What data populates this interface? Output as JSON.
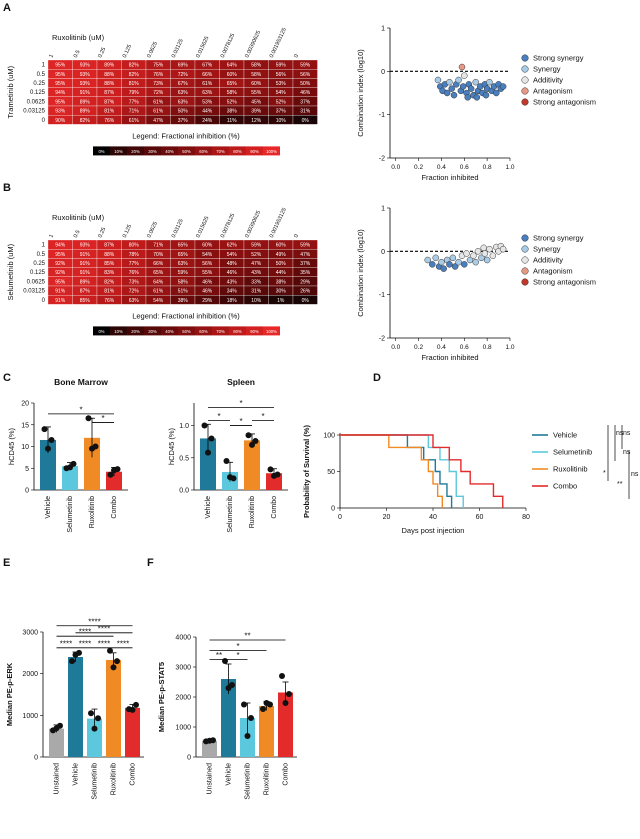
{
  "panels": {
    "A": {
      "label": "A",
      "col_drug": "Ruxolitinib (uM)",
      "row_drug": "Trametinib (uM)",
      "col_ticks": [
        "1",
        "0.5",
        "0.25",
        "0.125",
        "0.0625",
        "0.03125",
        "0.015625",
        "0.0078125",
        "0.00390625",
        "0.001953125",
        "0"
      ],
      "row_ticks": [
        "1",
        "0.5",
        "0.25",
        "0.125",
        "0.0625",
        "0.03125",
        "0"
      ],
      "values": [
        [
          "95%",
          "93%",
          "89%",
          "82%",
          "75%",
          "69%",
          "67%",
          "64%",
          "58%",
          "59%",
          "59%"
        ],
        [
          "95%",
          "93%",
          "88%",
          "82%",
          "76%",
          "72%",
          "66%",
          "60%",
          "58%",
          "56%",
          "56%"
        ],
        [
          "95%",
          "93%",
          "88%",
          "81%",
          "73%",
          "67%",
          "61%",
          "65%",
          "60%",
          "53%",
          "50%"
        ],
        [
          "94%",
          "91%",
          "87%",
          "79%",
          "72%",
          "63%",
          "63%",
          "58%",
          "55%",
          "54%",
          "46%"
        ],
        [
          "95%",
          "89%",
          "87%",
          "77%",
          "61%",
          "63%",
          "53%",
          "52%",
          "45%",
          "52%",
          "37%"
        ],
        [
          "93%",
          "89%",
          "81%",
          "71%",
          "61%",
          "50%",
          "44%",
          "38%",
          "39%",
          "37%",
          "31%"
        ],
        [
          "90%",
          "82%",
          "76%",
          "61%",
          "47%",
          "37%",
          "24%",
          "11%",
          "12%",
          "10%",
          "0%"
        ]
      ],
      "legend_title": "Legend: Fractional inhibition (%)",
      "legend_steps": [
        "0%",
        "10%",
        "20%",
        "30%",
        "40%",
        "50%",
        "60%",
        "70%",
        "80%",
        "90%",
        "100%"
      ],
      "scatter": {
        "ylabel": "Combination index (log10)",
        "xlabel": "Fraction inhibited",
        "x_ticks": [
          "0.0",
          "0.2",
          "0.4",
          "0.6",
          "0.8",
          "1.0"
        ],
        "y_ticks": [
          "1",
          "0",
          "-1",
          "-2"
        ],
        "legend": [
          "Strong synergy",
          "Synergy",
          "Additivity",
          "Antagonism",
          "Strong antagonism"
        ]
      }
    },
    "B": {
      "label": "B",
      "col_drug": "Ruxolitinib (uM)",
      "row_drug": "Selumetinib (uM)",
      "col_ticks": [
        "1",
        "0.5",
        "0.25",
        "0.125",
        "0.0625",
        "0.03125",
        "0.015625",
        "0.0078125",
        "0.00390625",
        "0.001953125",
        "0"
      ],
      "row_ticks": [
        "1",
        "0.5",
        "0.25",
        "0.125",
        "0.0625",
        "0.03125",
        "0"
      ],
      "values": [
        [
          "94%",
          "93%",
          "87%",
          "80%",
          "71%",
          "65%",
          "60%",
          "62%",
          "59%",
          "60%",
          "59%"
        ],
        [
          "95%",
          "91%",
          "88%",
          "78%",
          "70%",
          "65%",
          "54%",
          "54%",
          "52%",
          "49%",
          "47%"
        ],
        [
          "92%",
          "91%",
          "85%",
          "77%",
          "66%",
          "63%",
          "56%",
          "48%",
          "47%",
          "50%",
          "37%"
        ],
        [
          "92%",
          "91%",
          "83%",
          "76%",
          "65%",
          "59%",
          "55%",
          "46%",
          "43%",
          "44%",
          "35%"
        ],
        [
          "95%",
          "89%",
          "82%",
          "73%",
          "64%",
          "58%",
          "46%",
          "43%",
          "33%",
          "38%",
          "29%"
        ],
        [
          "91%",
          "87%",
          "81%",
          "72%",
          "61%",
          "51%",
          "46%",
          "34%",
          "31%",
          "30%",
          "26%"
        ],
        [
          "91%",
          "85%",
          "76%",
          "63%",
          "54%",
          "38%",
          "29%",
          "18%",
          "10%",
          "1%",
          "0%"
        ]
      ],
      "legend_title": "Legend: Fractional inhibition (%)",
      "legend_steps": [
        "0%",
        "10%",
        "20%",
        "30%",
        "40%",
        "50%",
        "60%",
        "70%",
        "80%",
        "90%",
        "100%"
      ],
      "scatter": {
        "ylabel": "Combination index (log10)",
        "xlabel": "Fraction inhibited",
        "x_ticks": [
          "0.0",
          "0.2",
          "0.4",
          "0.6",
          "0.8",
          "1.0"
        ],
        "y_ticks": [
          "1",
          "0",
          "-1",
          "-2"
        ],
        "legend": [
          "Strong synergy",
          "Synergy",
          "Additivity",
          "Antagonism",
          "Strong antagonism"
        ]
      }
    },
    "C": {
      "label": "C"
    },
    "D": {
      "label": "D"
    },
    "E": {
      "label": "E"
    },
    "F": {
      "label": "F"
    }
  },
  "colors": {
    "vehicle": "#1f7a99",
    "selumetinib": "#5cc8de",
    "ruxolitinib": "#f08a24",
    "combo": "#e32b2b",
    "unstained": "#a9a9a9",
    "strong_synergy": "#4a7fbf",
    "synergy": "#a9cbe6",
    "additivity": "#e6e6e6",
    "antagonism": "#e69a86",
    "strong_antagonism": "#c0392b"
  },
  "chart_data": [
    {
      "id": "A-scatter",
      "type": "scatter",
      "xlabel": "Fraction inhibited",
      "ylabel": "Combination index (log10)",
      "xlim": [
        0,
        1.0
      ],
      "ylim": [
        -2,
        1
      ],
      "points": [
        [
          0.37,
          -0.2
        ],
        [
          0.39,
          -0.35
        ],
        [
          0.41,
          -0.45
        ],
        [
          0.43,
          -0.3
        ],
        [
          0.45,
          -0.5
        ],
        [
          0.47,
          -0.25
        ],
        [
          0.49,
          -0.4
        ],
        [
          0.51,
          -0.55
        ],
        [
          0.53,
          -0.3
        ],
        [
          0.55,
          -0.2
        ],
        [
          0.57,
          -0.45
        ],
        [
          0.59,
          -0.35
        ],
        [
          0.6,
          -0.1
        ],
        [
          0.62,
          -0.5
        ],
        [
          0.64,
          -0.3
        ],
        [
          0.66,
          -0.4
        ],
        [
          0.68,
          -0.55
        ],
        [
          0.7,
          -0.25
        ],
        [
          0.72,
          -0.45
        ],
        [
          0.74,
          -0.35
        ],
        [
          0.76,
          -0.5
        ],
        [
          0.78,
          -0.3
        ],
        [
          0.8,
          -0.4
        ],
        [
          0.82,
          -0.25
        ],
        [
          0.84,
          -0.45
        ],
        [
          0.86,
          -0.35
        ],
        [
          0.88,
          -0.5
        ],
        [
          0.9,
          -0.3
        ],
        [
          0.92,
          -0.4
        ],
        [
          0.94,
          -0.35
        ],
        [
          0.58,
          0.1
        ],
        [
          0.63,
          -0.6
        ],
        [
          0.71,
          -0.6
        ],
        [
          0.79,
          -0.55
        ]
      ]
    },
    {
      "id": "B-scatter",
      "type": "scatter",
      "xlabel": "Fraction inhibited",
      "ylabel": "Combination index (log10)",
      "xlim": [
        0,
        1.0
      ],
      "ylim": [
        -2,
        1
      ],
      "points": [
        [
          0.28,
          -0.2
        ],
        [
          0.32,
          -0.3
        ],
        [
          0.35,
          -0.15
        ],
        [
          0.38,
          -0.35
        ],
        [
          0.4,
          -0.25
        ],
        [
          0.42,
          -0.4
        ],
        [
          0.45,
          -0.2
        ],
        [
          0.47,
          -0.3
        ],
        [
          0.5,
          -0.15
        ],
        [
          0.52,
          -0.35
        ],
        [
          0.55,
          -0.25
        ],
        [
          0.58,
          -0.1
        ],
        [
          0.6,
          -0.3
        ],
        [
          0.62,
          -0.05
        ],
        [
          0.65,
          -0.2
        ],
        [
          0.68,
          -0.1
        ],
        [
          0.7,
          -0.25
        ],
        [
          0.72,
          0.0
        ],
        [
          0.75,
          -0.15
        ],
        [
          0.78,
          -0.05
        ],
        [
          0.8,
          -0.2
        ],
        [
          0.82,
          0.05
        ],
        [
          0.85,
          -0.1
        ],
        [
          0.88,
          0.1
        ],
        [
          0.9,
          0.0
        ],
        [
          0.92,
          0.12
        ],
        [
          0.94,
          0.05
        ],
        [
          0.77,
          0.08
        ]
      ]
    },
    {
      "id": "C-bone-marrow",
      "type": "bar",
      "title": "Bone Marrow",
      "ylabel": "hCD45 (%)",
      "ylim": [
        0,
        20
      ],
      "y_ticks": [
        "0",
        "5",
        "10",
        "15",
        "20"
      ],
      "categories": [
        "Vehicle",
        "Selumetinib",
        "Ruxolitinib",
        "Combo"
      ],
      "values": [
        11.5,
        5.5,
        12,
        4.2
      ],
      "errors": [
        3,
        0.8,
        4.5,
        1
      ],
      "points": [
        [
          14,
          9.5,
          11.5
        ],
        [
          5,
          5.2,
          6
        ],
        [
          16.5,
          9.5,
          10
        ],
        [
          3.5,
          4.5,
          4.8
        ]
      ],
      "sig": [
        {
          "a": 0,
          "b": 3,
          "label": "*",
          "y": 17.5
        },
        {
          "a": 2,
          "b": 3,
          "label": "*",
          "y": 15.5
        }
      ]
    },
    {
      "id": "C-spleen",
      "type": "bar",
      "title": "Spleen",
      "ylabel": "hCD45 (%)",
      "ylim": [
        0,
        1.35
      ],
      "y_ticks": [
        "0.0",
        "0.5",
        "1.0"
      ],
      "categories": [
        "Vehicle",
        "Selumetinib",
        "Ruxolitinib",
        "Combo"
      ],
      "values": [
        0.8,
        0.28,
        0.77,
        0.26
      ],
      "errors": [
        0.22,
        0.15,
        0.1,
        0.07
      ],
      "points": [
        [
          1.0,
          0.58,
          0.8
        ],
        [
          0.45,
          0.2,
          0.18
        ],
        [
          0.85,
          0.7,
          0.76
        ],
        [
          0.32,
          0.22,
          0.24
        ]
      ],
      "sig": [
        {
          "a": 0,
          "b": 3,
          "label": "*",
          "y": 1.28
        },
        {
          "a": 0,
          "b": 1,
          "label": "*",
          "y": 1.08
        },
        {
          "a": 1,
          "b": 2,
          "label": "*",
          "y": 1.0
        },
        {
          "a": 2,
          "b": 3,
          "label": "*",
          "y": 1.08
        }
      ]
    },
    {
      "id": "D-survival",
      "type": "line",
      "ylabel": "Probability of Survival (%)",
      "xlabel": "Days post injection",
      "xlim": [
        0,
        80
      ],
      "ylim": [
        0,
        100
      ],
      "x_ticks": [
        "0",
        "20",
        "40",
        "60",
        "80"
      ],
      "y_ticks": [
        "0",
        "50",
        "100"
      ],
      "series": [
        {
          "name": "Vehicle",
          "points": [
            [
              0,
              100
            ],
            [
              29,
              100
            ],
            [
              29,
              83
            ],
            [
              36,
              83
            ],
            [
              36,
              66
            ],
            [
              41,
              66
            ],
            [
              41,
              50
            ],
            [
              43,
              50
            ],
            [
              43,
              33
            ],
            [
              46,
              33
            ],
            [
              46,
              16
            ],
            [
              48,
              16
            ],
            [
              48,
              0
            ]
          ]
        },
        {
          "name": "Selumetinib",
          "points": [
            [
              0,
              100
            ],
            [
              38,
              100
            ],
            [
              38,
              83
            ],
            [
              43,
              83
            ],
            [
              43,
              66
            ],
            [
              47,
              66
            ],
            [
              47,
              50
            ],
            [
              50,
              50
            ],
            [
              50,
              16
            ],
            [
              53,
              16
            ],
            [
              53,
              0
            ]
          ]
        },
        {
          "name": "Ruxolitinib",
          "points": [
            [
              0,
              100
            ],
            [
              21,
              100
            ],
            [
              21,
              83
            ],
            [
              35,
              83
            ],
            [
              35,
              66
            ],
            [
              38,
              66
            ],
            [
              38,
              50
            ],
            [
              40,
              50
            ],
            [
              40,
              33
            ],
            [
              42,
              33
            ],
            [
              42,
              16
            ],
            [
              44,
              16
            ],
            [
              44,
              0
            ]
          ]
        },
        {
          "name": "Combo",
          "points": [
            [
              0,
              100
            ],
            [
              40,
              100
            ],
            [
              40,
              83
            ],
            [
              47,
              83
            ],
            [
              47,
              66
            ],
            [
              52,
              66
            ],
            [
              52,
              50
            ],
            [
              56,
              50
            ],
            [
              56,
              33
            ],
            [
              66,
              33
            ],
            [
              66,
              16
            ],
            [
              70,
              16
            ],
            [
              70,
              0
            ]
          ]
        }
      ],
      "sig_labels": [
        "ns",
        "ns",
        "*",
        "ns",
        "**",
        "ns"
      ]
    },
    {
      "id": "E-p-ERK",
      "type": "bar",
      "ylabel": "Median PE-p-ERK",
      "ylim": [
        0,
        3000
      ],
      "y_ticks": [
        "0",
        "1000",
        "2000",
        "3000"
      ],
      "categories": [
        "Unstained",
        "Vehicle",
        "Selumetinib",
        "Ruxolitinib",
        "Combo"
      ],
      "values": [
        680,
        2400,
        920,
        2330,
        1180
      ],
      "errors": [
        90,
        120,
        230,
        170,
        80
      ],
      "points": [
        [
          640,
          690,
          750
        ],
        [
          2300,
          2450,
          2500
        ],
        [
          1050,
          680,
          930
        ],
        [
          2550,
          2150,
          2300
        ],
        [
          1150,
          1130,
          1250
        ]
      ],
      "sig": [
        {
          "a": 0,
          "b": 1,
          "label": "****",
          "y": 2620
        },
        {
          "a": 0,
          "b": 4,
          "label": "****",
          "y": 3150
        },
        {
          "a": 0,
          "b": 3,
          "label": "****",
          "y": 2900
        },
        {
          "a": 1,
          "b": 2,
          "label": "****",
          "y": 2620
        },
        {
          "a": 1,
          "b": 4,
          "label": "****",
          "y": 2980
        },
        {
          "a": 2,
          "b": 3,
          "label": "****",
          "y": 2620
        },
        {
          "a": 3,
          "b": 4,
          "label": "****",
          "y": 2620
        }
      ]
    },
    {
      "id": "F-p-STAT5",
      "type": "bar",
      "ylabel": "Median PE-p-STAT5",
      "ylim": [
        0,
        4000
      ],
      "y_ticks": [
        "0",
        "1000",
        "2000",
        "3000",
        "4000"
      ],
      "categories": [
        "Unstained",
        "Vehicle",
        "Selumetinib",
        "Ruxolitinib",
        "Combo"
      ],
      "values": [
        540,
        2600,
        1300,
        1700,
        2150
      ],
      "errors": [
        60,
        500,
        500,
        150,
        350
      ],
      "points": [
        [
          520,
          540,
          560
        ],
        [
          3200,
          2300,
          2400
        ],
        [
          1750,
          700,
          1300
        ],
        [
          1600,
          1800,
          1750
        ],
        [
          2700,
          1800,
          2100
        ]
      ],
      "sig": [
        {
          "a": 0,
          "b": 1,
          "label": "**",
          "y": 3250
        },
        {
          "a": 1,
          "b": 2,
          "label": "*",
          "y": 3250
        },
        {
          "a": 0,
          "b": 3,
          "label": "*",
          "y": 3550
        },
        {
          "a": 0,
          "b": 4,
          "label": "**",
          "y": 3900
        }
      ]
    }
  ]
}
